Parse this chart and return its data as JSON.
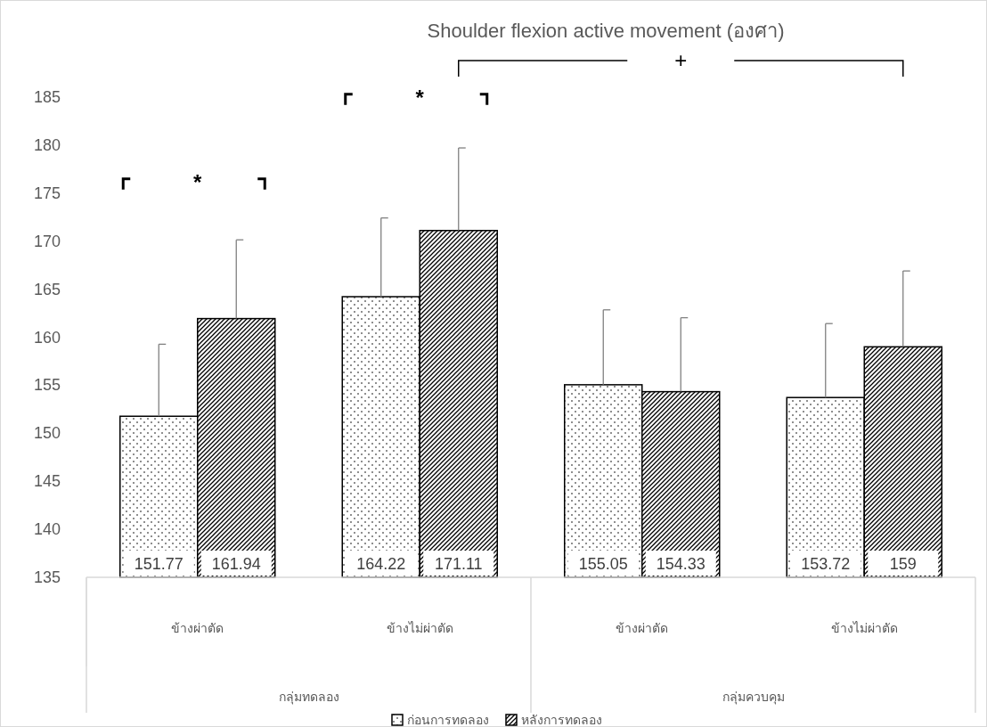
{
  "chart_data": {
    "type": "bar",
    "title": "Shoulder flexion active movement (องศา)",
    "categories": [
      "ข้างผ่าตัด",
      "ข้างไม่ผ่าตัด",
      "ข้างผ่าตัด",
      "ข้างไม่ผ่าตัด"
    ],
    "series": [
      {
        "name": "ก่อนการทดลอง",
        "color": "#000000",
        "values": [
          151.77,
          164.22,
          155.05,
          153.72
        ],
        "errors": [
          7.5,
          8.2,
          7.8,
          7.7
        ]
      },
      {
        "name": "หลังการทดลอง",
        "color": "#000000",
        "values": [
          161.94,
          171.11,
          154.33,
          159
        ],
        "errors": [
          8.2,
          8.6,
          7.7,
          7.9
        ]
      }
    ],
    "ylim": [
      135,
      185
    ],
    "yticks": [
      135,
      140,
      145,
      150,
      155,
      160,
      165,
      170,
      175,
      180,
      185
    ],
    "data_labels": true,
    "legend": "bottom",
    "annotations": [
      "*",
      "*",
      "+",
      "กลุ่มทดลอง",
      "กลุ่มควบคุม"
    ]
  }
}
